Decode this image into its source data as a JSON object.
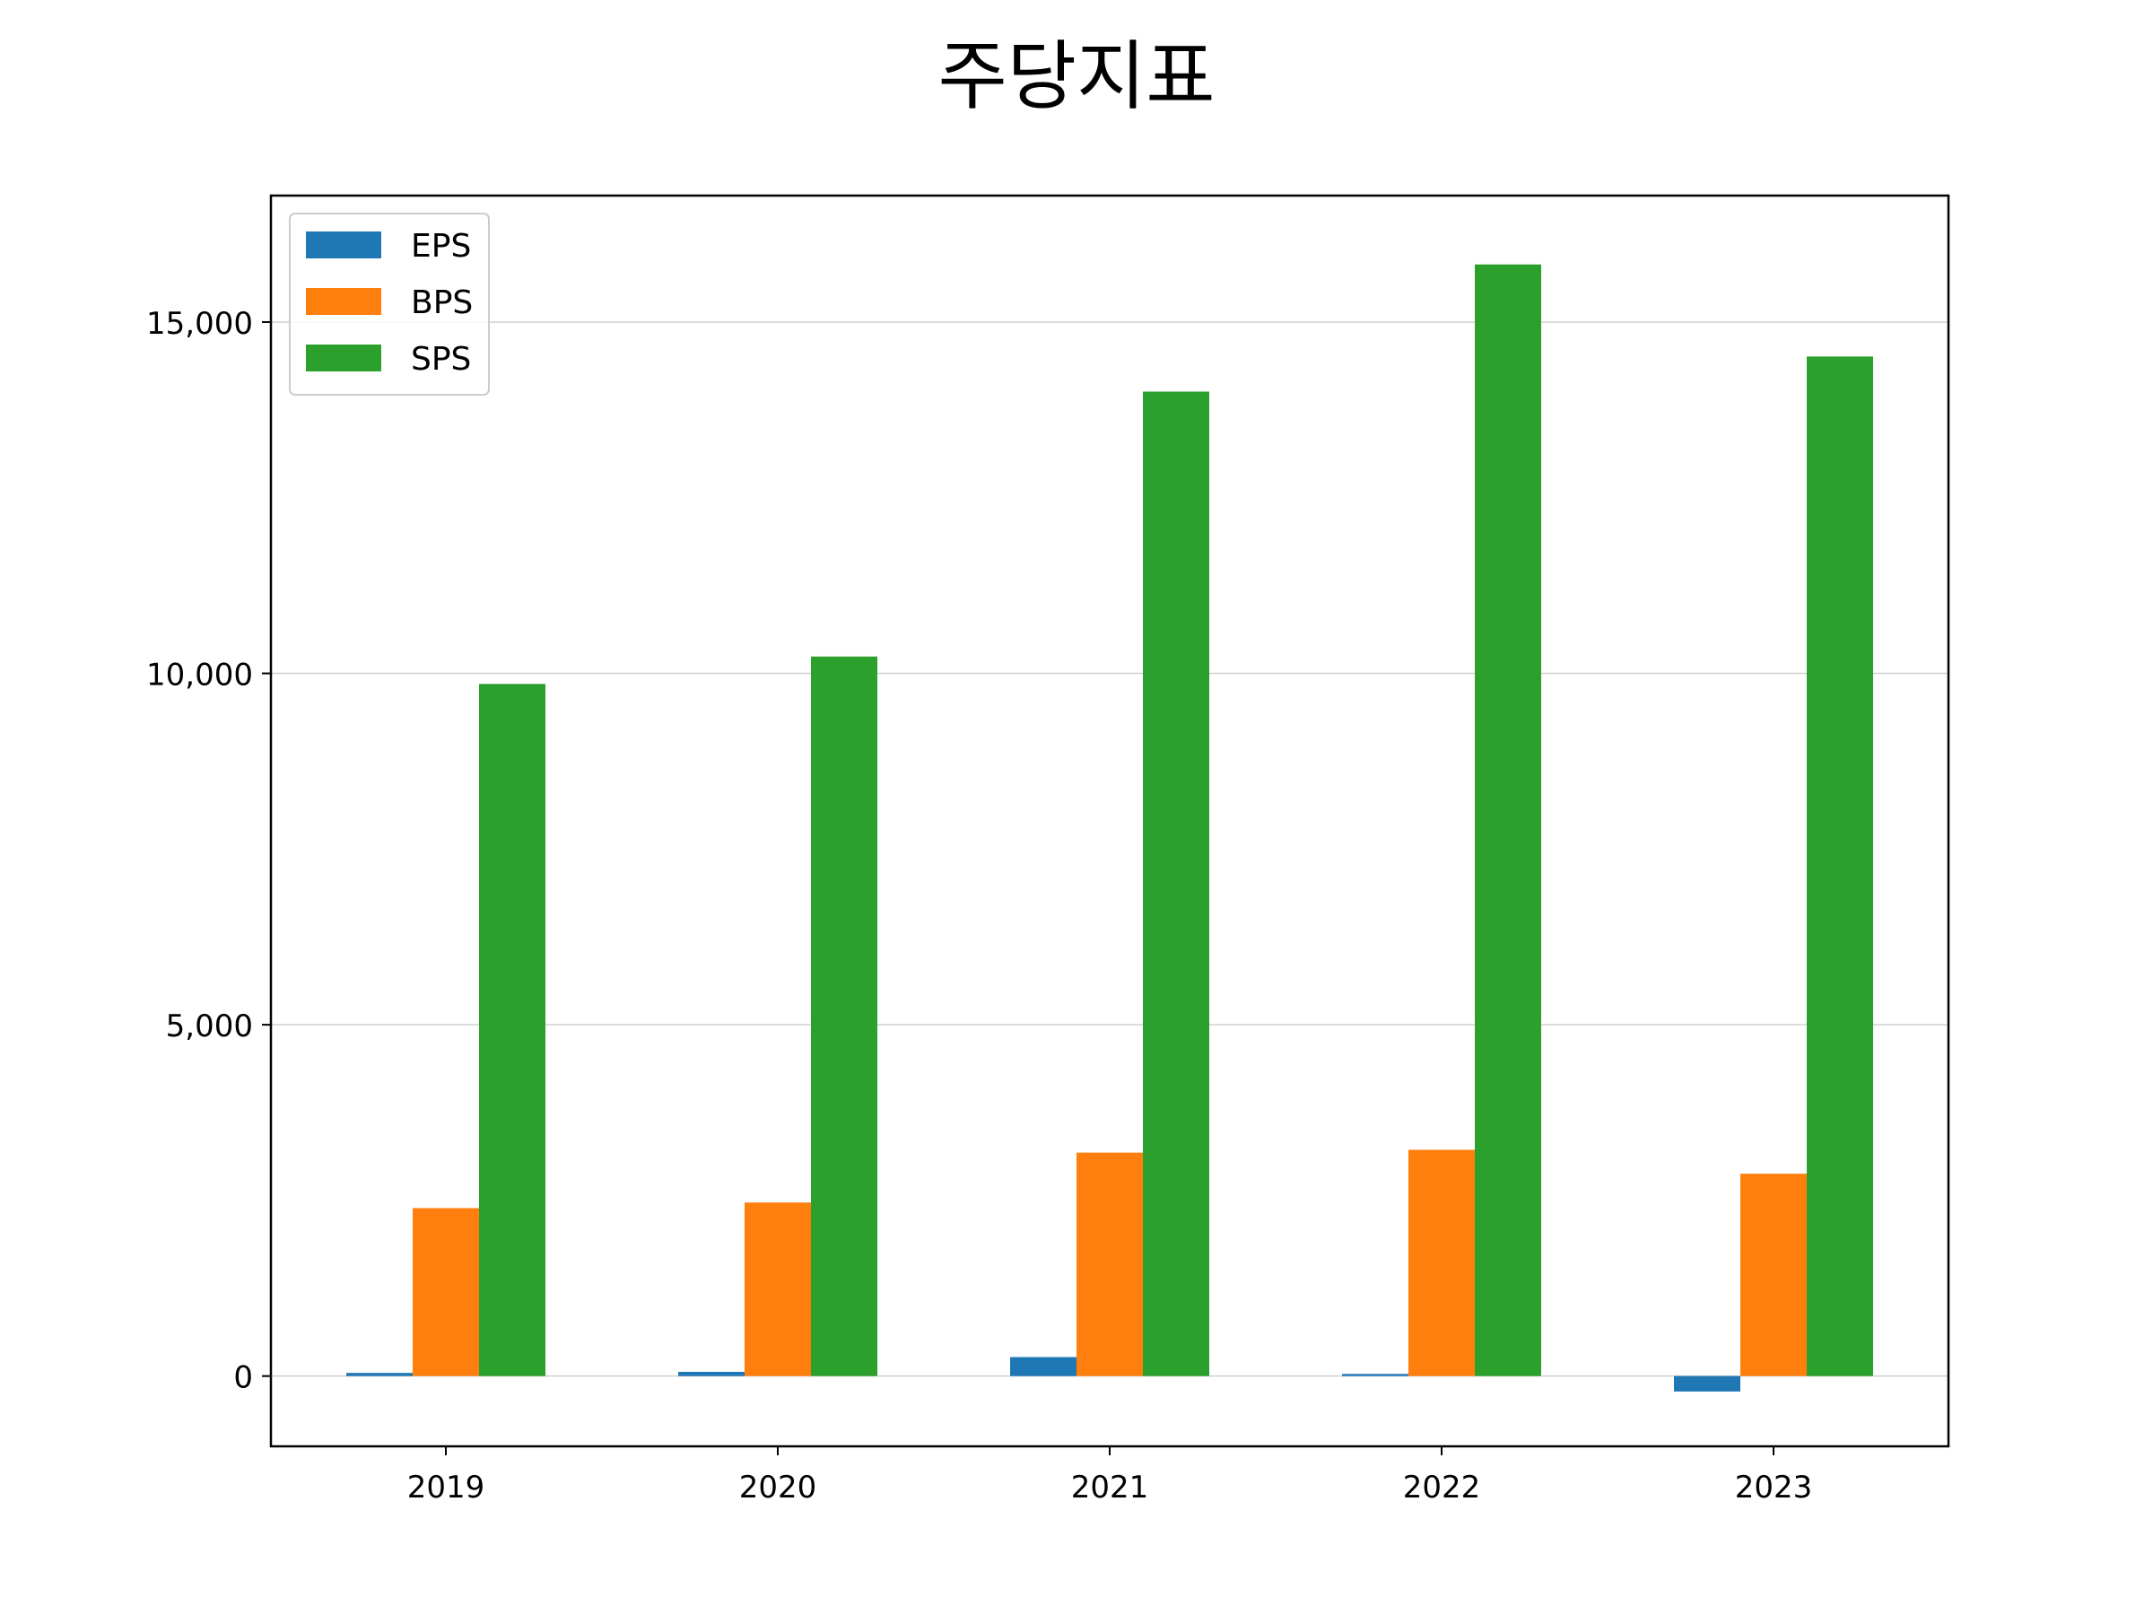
{
  "chart_data": {
    "type": "bar",
    "title": "주당지표",
    "categories": [
      "2019",
      "2020",
      "2021",
      "2022",
      "2023"
    ],
    "series": [
      {
        "name": "EPS",
        "color": "#1f77b4",
        "values": [
          45,
          60,
          270,
          30,
          -220
        ]
      },
      {
        "name": "BPS",
        "color": "#ff7f0e",
        "values": [
          2390,
          2470,
          3180,
          3220,
          2880
        ]
      },
      {
        "name": "SPS",
        "color": "#2ca02c",
        "values": [
          9850,
          10240,
          14010,
          15820,
          14510
        ]
      }
    ],
    "ylim": [
      -1000,
      16800
    ],
    "yticks": [
      0,
      5000,
      10000,
      15000
    ],
    "ytick_labels": [
      "0",
      "5,000",
      "10,000",
      "15,000"
    ],
    "xlabel": "",
    "ylabel": "",
    "grid": "y",
    "legend": "upper-left"
  }
}
